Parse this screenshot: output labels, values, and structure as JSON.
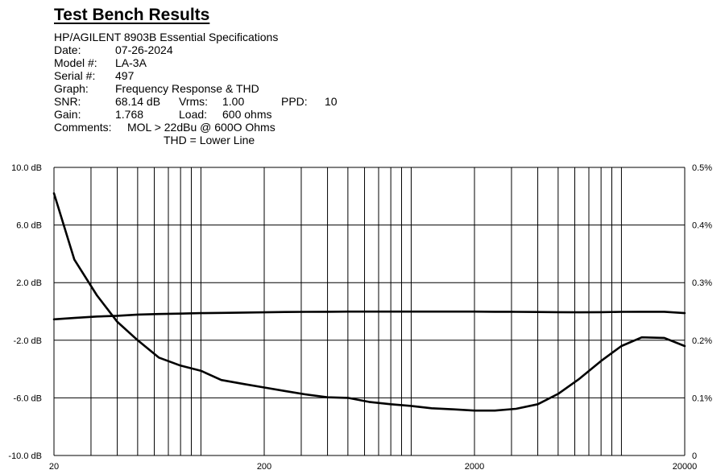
{
  "header": {
    "title": "Test Bench Results",
    "subtitle": "HP/AGILENT 8903B Essential Specifications",
    "date_label": "Date:",
    "date_value": "07-26-2024",
    "model_label": "Model #:",
    "model_value": "LA-3A",
    "serial_label": "Serial #:",
    "serial_value": "497",
    "graph_label": "Graph:",
    "graph_value": "Frequency Response & THD",
    "snr_label": "SNR:",
    "snr_value": "68.14 dB",
    "vrms_label": "Vrms:",
    "vrms_value": "1.00",
    "ppd_label": "PPD:",
    "ppd_value": "10",
    "gain_label": "Gain:",
    "gain_value": "1.768",
    "load_label": "Load:",
    "load_value": "600 ohms",
    "comments_label": "Comments:",
    "comments_value": "MOL >  22dBu  @ 600O Ohms",
    "comments_line2": "THD = Lower Line"
  },
  "chart_data": {
    "type": "line",
    "x_scale": "log",
    "xlim": [
      20,
      20000
    ],
    "x_ticks": [
      20,
      200,
      2000,
      20000
    ],
    "x_tick_labels": [
      "20",
      "200",
      "2000",
      "20000"
    ],
    "ylim_left": [
      -10,
      10
    ],
    "y_left_ticks": [
      -10,
      -6,
      -2,
      2,
      6,
      10
    ],
    "y_left_tick_labels": [
      "-10.0 dB",
      "-6.0 dB",
      "-2.0 dB",
      "2.0 dB",
      "6.0 dB",
      "10.0 dB"
    ],
    "ylim_right": [
      0,
      0.5
    ],
    "y_right_ticks": [
      0,
      0.1,
      0.2,
      0.3,
      0.4,
      0.5
    ],
    "y_right_tick_labels": [
      "0",
      "0.1%",
      "0.2%",
      "0.3%",
      "0.4%",
      "0.5%"
    ],
    "grid": true,
    "series": [
      {
        "axis": "left",
        "x": [
          20,
          25,
          32,
          40,
          50,
          63,
          80,
          100,
          125,
          160,
          200,
          250,
          315,
          400,
          500,
          630,
          800,
          1000,
          1250,
          1600,
          2000,
          2500,
          3150,
          4000,
          5000,
          6300,
          8000,
          10000,
          12500,
          16000,
          20000
        ],
        "values": [
          -0.55,
          -0.45,
          -0.35,
          -0.3,
          -0.22,
          -0.18,
          -0.15,
          -0.12,
          -0.1,
          -0.08,
          -0.06,
          -0.04,
          -0.03,
          -0.02,
          -0.01,
          -0.01,
          -0.01,
          -0.01,
          -0.01,
          -0.01,
          -0.01,
          -0.02,
          -0.03,
          -0.04,
          -0.05,
          -0.06,
          -0.05,
          -0.03,
          -0.02,
          -0.02,
          -0.12
        ]
      },
      {
        "axis": "right",
        "x": [
          20,
          25,
          32,
          40,
          50,
          63,
          80,
          100,
          125,
          160,
          200,
          250,
          315,
          400,
          500,
          630,
          800,
          1000,
          1250,
          1600,
          2000,
          2500,
          3150,
          4000,
          5000,
          6300,
          8000,
          10000,
          12500,
          16000,
          20000
        ],
        "values": [
          0.455,
          0.34,
          0.278,
          0.232,
          0.2,
          0.17,
          0.156,
          0.147,
          0.131,
          0.124,
          0.118,
          0.112,
          0.106,
          0.101,
          0.1,
          0.093,
          0.089,
          0.086,
          0.082,
          0.08,
          0.078,
          0.078,
          0.081,
          0.089,
          0.107,
          0.133,
          0.164,
          0.19,
          0.205,
          0.204,
          0.19
        ]
      }
    ]
  }
}
